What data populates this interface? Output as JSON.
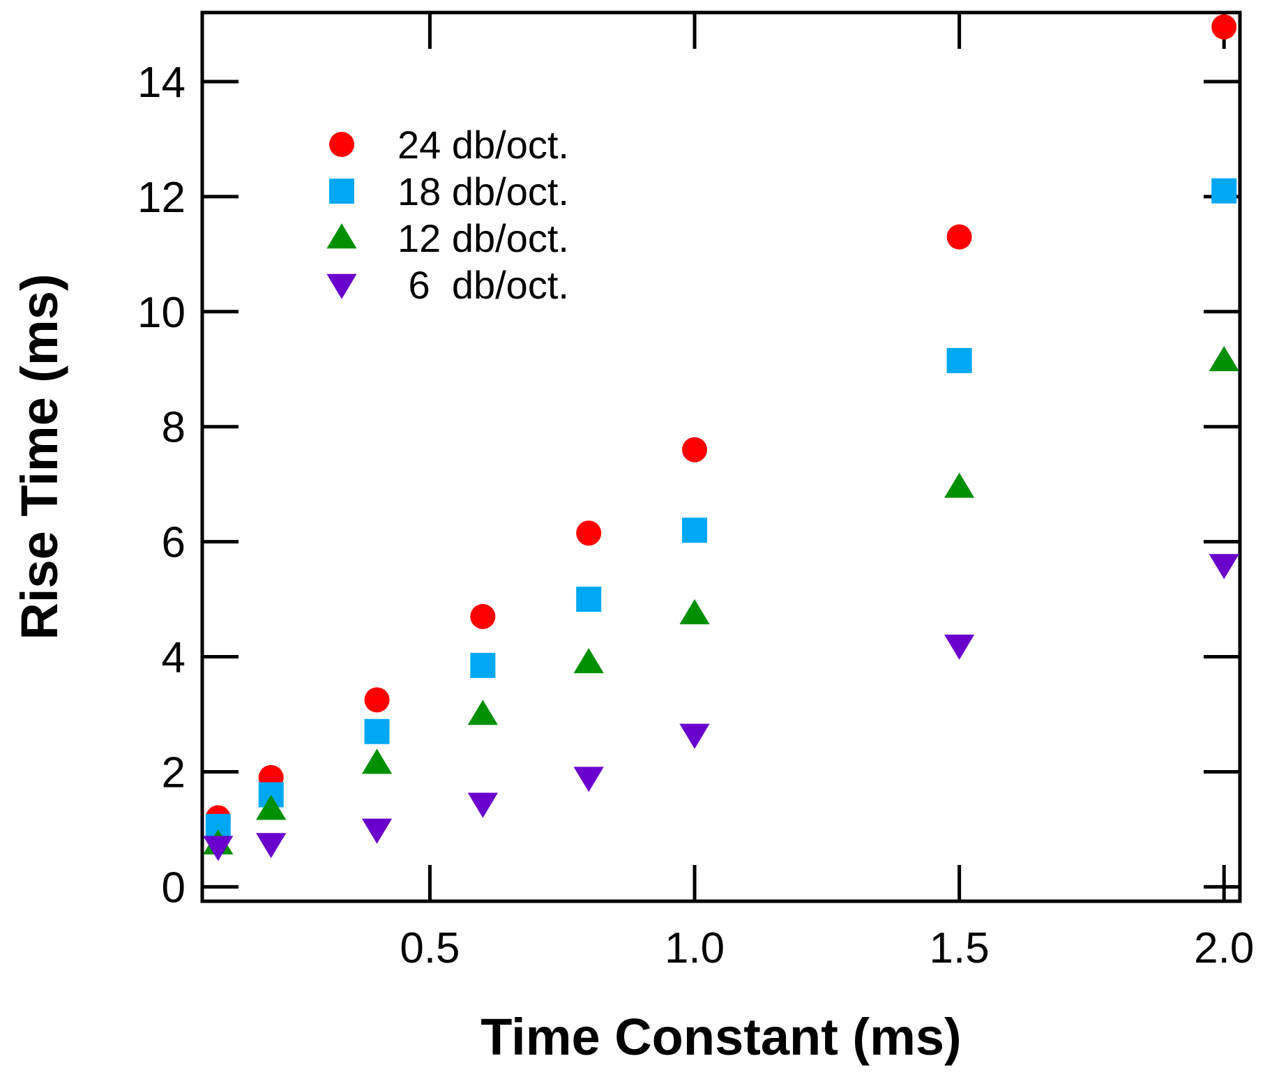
{
  "chart_data": {
    "type": "scatter",
    "title": "",
    "xlabel": "Time Constant (ms)",
    "ylabel": "Rise Time (ms)",
    "xlim": [
      0.07,
      2.03
    ],
    "ylim": [
      -0.25,
      15.2
    ],
    "x_ticks": [
      0.5,
      1.0,
      1.5,
      2.0
    ],
    "x_tick_labels": [
      "0.5",
      "1.0",
      "1.5",
      "2.0"
    ],
    "y_ticks": [
      0,
      2,
      4,
      6,
      8,
      10,
      12,
      14
    ],
    "y_tick_labels": [
      "0",
      "2",
      "4",
      "6",
      "8",
      "10",
      "12",
      "14"
    ],
    "grid": false,
    "legend_position": "top-left",
    "series": [
      {
        "name": "24 db/oct.",
        "legend_label": "24 db/oct.",
        "marker": "circle",
        "color": "#ff0000",
        "x": [
          0.1,
          0.2,
          0.4,
          0.6,
          0.8,
          1.0,
          1.5,
          2.0
        ],
        "y": [
          1.2,
          1.9,
          3.25,
          4.7,
          6.15,
          7.6,
          11.3,
          14.95
        ]
      },
      {
        "name": "18 db/oct.",
        "legend_label": "18 db/oct.",
        "marker": "square",
        "color": "#00a8f3",
        "x": [
          0.1,
          0.2,
          0.4,
          0.6,
          0.8,
          1.0,
          1.5,
          2.0
        ],
        "y": [
          1.05,
          1.6,
          2.7,
          3.85,
          5.0,
          6.2,
          9.15,
          12.1
        ]
      },
      {
        "name": "12 db/oct.",
        "legend_label": "12 db/oct.",
        "marker": "triangle-up",
        "color": "#008f00",
        "x": [
          0.1,
          0.2,
          0.4,
          0.6,
          0.8,
          1.0,
          1.5,
          2.0
        ],
        "y": [
          0.75,
          1.35,
          2.15,
          3.0,
          3.9,
          4.75,
          6.95,
          9.15
        ]
      },
      {
        "name": "6 db/oct.",
        "legend_label": " 6  db/oct.",
        "marker": "triangle-down",
        "color": "#6a00cc",
        "x": [
          0.1,
          0.2,
          0.4,
          0.6,
          0.8,
          1.0,
          1.5,
          2.0
        ],
        "y": [
          0.7,
          0.75,
          1.0,
          1.45,
          1.9,
          2.65,
          4.2,
          5.6
        ]
      }
    ]
  }
}
